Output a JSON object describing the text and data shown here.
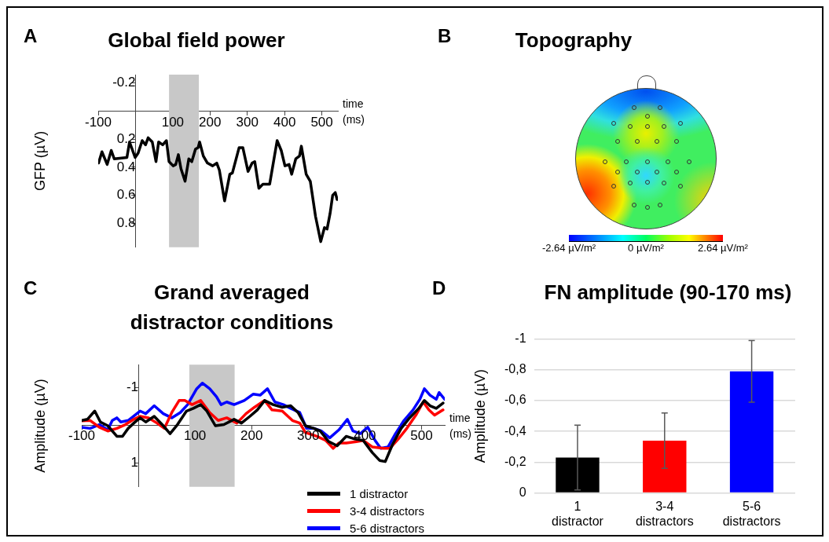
{
  "chart_data": [
    {
      "type": "line",
      "title": "Global field power",
      "annotations": [
        "A"
      ],
      "xlabel": "time (ms)",
      "ylabel": "GFP (µV)",
      "xlim": [
        -100,
        543
      ],
      "xticks": [
        -100,
        100,
        200,
        300,
        400,
        500
      ],
      "ylim": [
        0.97,
        -0.26
      ],
      "yticks": [
        -0.2,
        0.2,
        0.4,
        0.6,
        0.8
      ],
      "marker": "none",
      "bands": [
        {
          "axis": "x",
          "from": 90,
          "to": 170,
          "color": "#c8c8c8"
        }
      ],
      "series": [
        {
          "color": "#000000",
          "x": [
            -99,
            -90,
            -76,
            -65,
            -57,
            -23,
            -16,
            -1,
            7,
            18,
            27,
            34,
            45,
            55,
            62,
            73,
            83,
            90,
            101,
            108,
            115,
            122,
            133,
            143,
            151,
            161,
            168,
            172,
            182,
            193,
            207,
            218,
            225,
            239,
            253,
            260,
            278,
            288,
            302,
            313,
            320,
            331,
            342,
            360,
            380,
            391,
            401,
            412,
            419,
            430,
            440,
            445,
            458,
            469,
            483,
            497,
            507,
            514,
            522,
            529,
            536,
            541
          ],
          "values": [
            0.37,
            0.29,
            0.38,
            0.28,
            0.34,
            0.33,
            0.22,
            0.33,
            0.3,
            0.21,
            0.24,
            0.19,
            0.22,
            0.36,
            0.22,
            0.24,
            0.21,
            0.36,
            0.39,
            0.38,
            0.31,
            0.41,
            0.5,
            0.34,
            0.36,
            0.27,
            0.26,
            0.22,
            0.32,
            0.37,
            0.39,
            0.37,
            0.42,
            0.64,
            0.45,
            0.44,
            0.26,
            0.26,
            0.43,
            0.37,
            0.36,
            0.55,
            0.52,
            0.52,
            0.21,
            0.28,
            0.39,
            0.38,
            0.45,
            0.34,
            0.32,
            0.25,
            0.45,
            0.5,
            0.75,
            0.93,
            0.83,
            0.84,
            0.73,
            0.6,
            0.58,
            0.63
          ]
        }
      ]
    },
    {
      "type": "other",
      "title": "Topography",
      "annotations": [
        "B",
        "-2.64 µV/m²",
        "0 µV/m²",
        "2.64 µV/m²"
      ]
    },
    {
      "type": "line",
      "title": "Grand averaged distractor conditions",
      "annotations": [
        "C"
      ],
      "xlabel": "time (ms)",
      "ylabel": "Amplitude (µV)",
      "xlim": [
        -100,
        541
      ],
      "xticks": [
        -100,
        100,
        200,
        300,
        400,
        500
      ],
      "ylim": [
        1.64,
        -1.6
      ],
      "yticks": [
        -1,
        1
      ],
      "marker": "none",
      "legend": "bottom right",
      "bands": [
        {
          "axis": "x",
          "from": 90,
          "to": 170,
          "color": "#c8c8c8"
        }
      ],
      "series": [
        {
          "name": "1 distractor",
          "color": "#000000",
          "x": [
            -100,
            -90,
            -77,
            -67,
            -54,
            -38,
            -28,
            -18,
            -8,
            3,
            13,
            28,
            44,
            56,
            69,
            85,
            97,
            110,
            121,
            136,
            151,
            169,
            182,
            197,
            210,
            223,
            238,
            254,
            269,
            282,
            295,
            310,
            321,
            336,
            351,
            367,
            382,
            397,
            413,
            426,
            436,
            449,
            464,
            479,
            495,
            505,
            515,
            526,
            538
          ],
          "values": [
            -0.12,
            -0.15,
            -0.37,
            -0.08,
            0.02,
            0.3,
            0.3,
            0.09,
            -0.05,
            -0.19,
            -0.08,
            -0.23,
            0.02,
            0.23,
            -0.01,
            -0.37,
            -0.44,
            -0.54,
            -0.37,
            0.02,
            -0.01,
            -0.15,
            -0.05,
            -0.23,
            -0.4,
            -0.65,
            -0.54,
            -0.47,
            -0.51,
            -0.33,
            0.02,
            0.09,
            0.16,
            0.44,
            0.55,
            0.3,
            0.37,
            0.41,
            0.73,
            0.94,
            0.97,
            0.51,
            0.09,
            -0.19,
            -0.44,
            -0.65,
            -0.51,
            -0.44,
            -0.58
          ]
        },
        {
          "name": "3-4 distractors",
          "color": "#ff0000",
          "x": [
            -100,
            -85,
            -69,
            -54,
            -38,
            -23,
            -8,
            3,
            18,
            33,
            46,
            59,
            72,
            82,
            95,
            110,
            126,
            141,
            156,
            174,
            190,
            205,
            223,
            236,
            254,
            272,
            285,
            295,
            315,
            331,
            344,
            354,
            367,
            385,
            397,
            413,
            433,
            444,
            459,
            474,
            490,
            503,
            513,
            523,
            538
          ],
          "values": [
            -0.11,
            -0.12,
            0.06,
            0.16,
            0.09,
            -0.01,
            -0.15,
            -0.23,
            -0.19,
            -0.05,
            0.09,
            -0.33,
            -0.65,
            -0.65,
            -0.54,
            -0.65,
            -0.33,
            -0.12,
            -0.19,
            -0.05,
            -0.3,
            -0.47,
            -0.65,
            -0.4,
            -0.37,
            -0.12,
            -0.05,
            0.2,
            0.3,
            0.41,
            0.62,
            0.48,
            0.48,
            0.44,
            0.41,
            0.58,
            0.62,
            0.62,
            0.37,
            0.09,
            -0.26,
            -0.61,
            -0.4,
            -0.26,
            -0.4
          ]
        },
        {
          "name": "5-6 distractors",
          "color": "#0000ff",
          "x": [
            -100,
            -85,
            -69,
            -54,
            -46,
            -38,
            -31,
            -18,
            3,
            13,
            28,
            44,
            59,
            74,
            87,
            103,
            113,
            126,
            138,
            146,
            156,
            169,
            187,
            203,
            215,
            228,
            241,
            256,
            269,
            285,
            297,
            310,
            323,
            338,
            354,
            369,
            379,
            392,
            405,
            418,
            428,
            441,
            454,
            469,
            485,
            497,
            505,
            515,
            526,
            531,
            541
          ],
          "values": [
            0.06,
            0.09,
            -0.01,
            0.13,
            -0.12,
            -0.19,
            -0.08,
            -0.12,
            -0.37,
            -0.3,
            -0.51,
            -0.3,
            -0.19,
            -0.33,
            -0.54,
            -0.96,
            -1.11,
            -0.96,
            -0.75,
            -0.54,
            -0.61,
            -0.54,
            -0.65,
            -0.82,
            -0.79,
            -0.96,
            -0.61,
            -0.54,
            -0.44,
            -0.33,
            0.09,
            0.09,
            0.16,
            0.34,
            0.13,
            -0.15,
            0.16,
            0.23,
            0.06,
            0.41,
            0.62,
            0.58,
            0.23,
            -0.12,
            -0.4,
            -0.68,
            -0.96,
            -0.79,
            -0.68,
            -0.86,
            -0.68
          ]
        }
      ]
    },
    {
      "type": "bar",
      "title": "FN amplitude (90-170 ms)",
      "annotations": [
        "D"
      ],
      "ylabel": "Amplitude (µV)",
      "categories": [
        "1 distractor",
        "3-4 distractors",
        "5-6 distractors"
      ],
      "values": [
        -0.23,
        -0.34,
        -0.79
      ],
      "errors": [
        0.21,
        0.18,
        0.2
      ],
      "colors": [
        "#000000",
        "#ff0000",
        "#0000ff"
      ],
      "ylim": [
        0,
        -1
      ],
      "yticks": [
        0,
        {
          "value": -0.2,
          "label": "-0,2"
        },
        {
          "value": -0.4,
          "label": "-0,4"
        },
        {
          "value": -0.6,
          "label": "-0,6"
        },
        {
          "value": -0.8,
          "label": "-0,8"
        },
        -1
      ],
      "grid": "y"
    }
  ]
}
